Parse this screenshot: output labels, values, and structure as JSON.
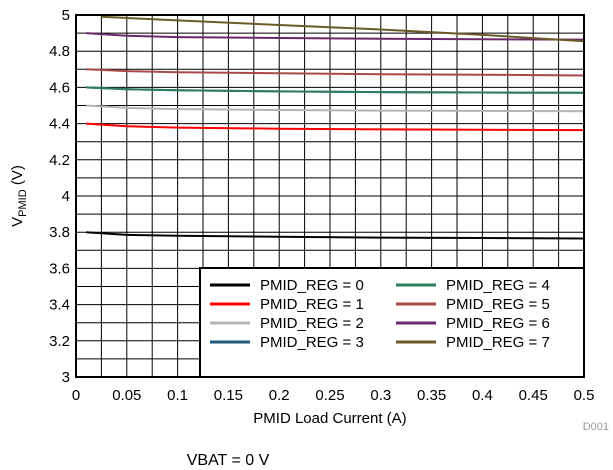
{
  "chart_data": {
    "type": "line",
    "xlabel": "PMID Load Current (A)",
    "ylabel_main": "V",
    "ylabel_sub": "PMID",
    "ylabel_unit": " (V)",
    "xlim": [
      0,
      0.5
    ],
    "ylim": [
      3,
      5
    ],
    "xticks": [
      "0",
      "0.05",
      "0.1",
      "0.15",
      "0.2",
      "0.25",
      "0.3",
      "0.35",
      "0.4",
      "0.45",
      "0.5"
    ],
    "yticks": [
      "3",
      "3.2",
      "3.4",
      "3.6",
      "3.8",
      "4",
      "4.2",
      "4.4",
      "4.6",
      "4.8",
      "5"
    ],
    "x_minor_step": 0.025,
    "y_minor_step": 0.1,
    "grid": true,
    "legend_position": "bottom-right",
    "series": [
      {
        "name": "PMID_REG = 0",
        "color": "#000000",
        "x": [
          0.01,
          0.05,
          0.1,
          0.2,
          0.3,
          0.4,
          0.5
        ],
        "y": [
          3.8,
          3.785,
          3.78,
          3.775,
          3.77,
          3.768,
          3.765
        ]
      },
      {
        "name": "PMID_REG = 1",
        "color": "#ff0000",
        "x": [
          0.01,
          0.05,
          0.1,
          0.2,
          0.3,
          0.4,
          0.5
        ],
        "y": [
          4.4,
          4.385,
          4.378,
          4.372,
          4.368,
          4.366,
          4.364
        ]
      },
      {
        "name": "PMID_REG = 2",
        "color": "#b4b4b4",
        "x": [
          0.01,
          0.05,
          0.1,
          0.2,
          0.3,
          0.4,
          0.5
        ],
        "y": [
          4.5,
          4.487,
          4.48,
          4.475,
          4.472,
          4.47,
          4.468
        ]
      },
      {
        "name": "PMID_REG = 3",
        "color": "#1e5a7a",
        "x": [
          0.01,
          0.05,
          0.1,
          0.2,
          0.3,
          0.4,
          0.5
        ],
        "y": [
          4.6,
          4.59,
          4.584,
          4.578,
          4.574,
          4.572,
          4.57
        ]
      },
      {
        "name": "PMID_REG = 4",
        "color": "#2e7d5b",
        "x": [
          0.01,
          0.05,
          0.1,
          0.2,
          0.3,
          0.4,
          0.5
        ],
        "y": [
          4.6,
          4.59,
          4.584,
          4.578,
          4.574,
          4.572,
          4.57
        ]
      },
      {
        "name": "PMID_REG = 5",
        "color": "#a84a4a",
        "x": [
          0.01,
          0.05,
          0.1,
          0.2,
          0.3,
          0.4,
          0.5
        ],
        "y": [
          4.7,
          4.69,
          4.684,
          4.678,
          4.673,
          4.67,
          4.666
        ]
      },
      {
        "name": "PMID_REG = 6",
        "color": "#6a2a6a",
        "x": [
          0.01,
          0.05,
          0.1,
          0.2,
          0.3,
          0.4,
          0.5
        ],
        "y": [
          4.9,
          4.885,
          4.878,
          4.873,
          4.869,
          4.866,
          4.864
        ]
      },
      {
        "name": "PMID_REG = 7",
        "color": "#6b5a2a",
        "x": [
          0.025,
          0.1,
          0.2,
          0.3,
          0.4,
          0.5
        ],
        "y": [
          4.99,
          4.97,
          4.945,
          4.92,
          4.89,
          4.855
        ]
      }
    ],
    "legend_order": [
      0,
      4,
      1,
      5,
      2,
      6,
      3,
      7
    ]
  },
  "figure_id": "D001",
  "caption": "VBAT = 0 V"
}
